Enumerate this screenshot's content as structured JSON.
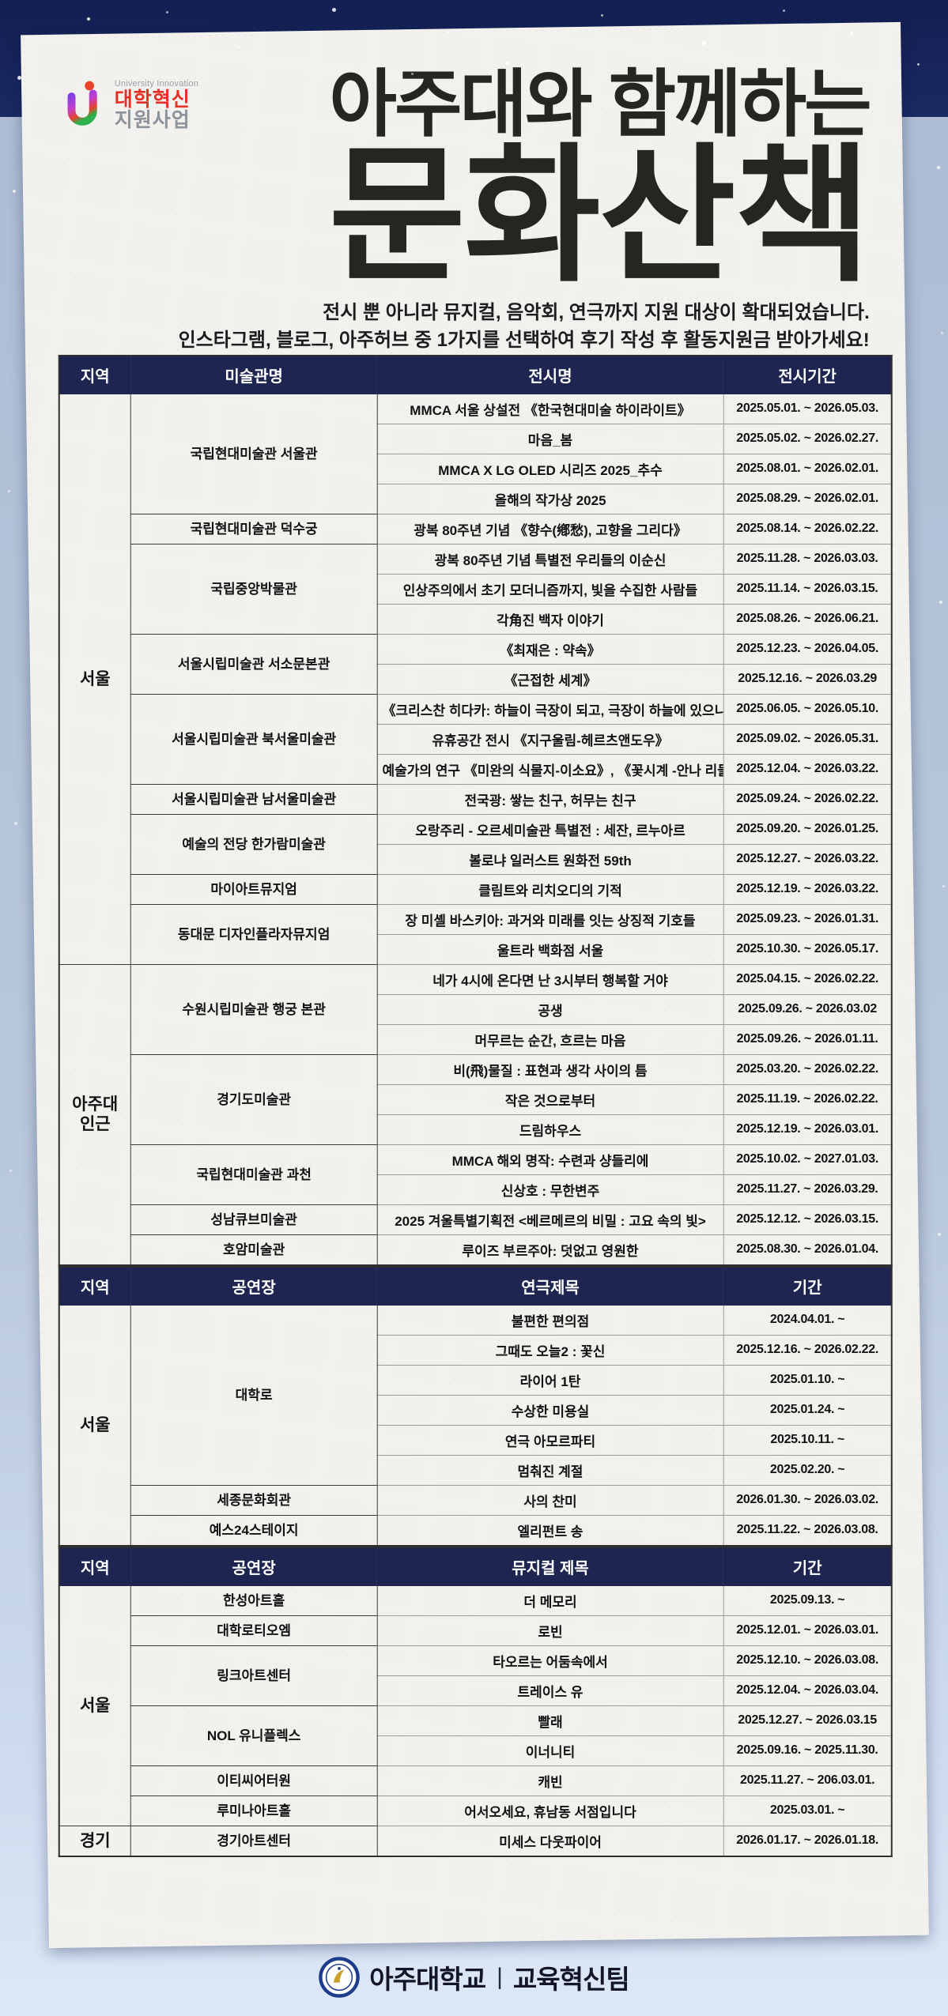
{
  "badge": {
    "small_label": "University Innovation",
    "line1": "대학혁신",
    "line2": "지원사업"
  },
  "title": {
    "line1": "아주대와 함께하는",
    "line2": "문화산책"
  },
  "subtitle": {
    "line1": "전시 뿐 아니라 뮤지컬, 음악회, 연극까지 지원 대상이 확대되었습니다.",
    "line2": "인스타그램, 블로그, 아주허브 중 1가지를 선택하여 후기 작성 후 활동지원금 받아가세요!"
  },
  "colors": {
    "header_navy": "#1d2550",
    "badge_red": "#e62e26",
    "paper": "#f2f1ee",
    "background_navy": "#1a2a63"
  },
  "tables": [
    {
      "headers": [
        "지역",
        "미술관명",
        "전시명",
        "전시기간"
      ],
      "regions": [
        {
          "name": "서울",
          "venues": [
            {
              "name": "국립현대미술관 서울관",
              "items": [
                {
                  "title": "MMCA 서울 상설전 《한국현대미술 하이라이트》",
                  "period": "2025.05.01. ~ 2026.05.03."
                },
                {
                  "title": "마음_봄",
                  "period": "2025.05.02. ~ 2026.02.27."
                },
                {
                  "title": "MMCA X LG OLED 시리즈 2025_추수",
                  "period": "2025.08.01. ~ 2026.02.01."
                },
                {
                  "title": "올해의 작가상 2025",
                  "period": "2025.08.29. ~ 2026.02.01."
                }
              ]
            },
            {
              "name": "국립현대미술관 덕수궁",
              "items": [
                {
                  "title": "광복 80주년 기념 《향수(鄕愁), 고향을 그리다》",
                  "period": "2025.08.14. ~ 2026.02.22."
                }
              ]
            },
            {
              "name": "국립중앙박물관",
              "items": [
                {
                  "title": "광복 80주년 기념 특별전 우리들의 이순신",
                  "period": "2025.11.28. ~ 2026.03.03."
                },
                {
                  "title": "인상주의에서 초기 모더니즘까지, 빛을 수집한 사람들",
                  "period": "2025.11.14. ~ 2026.03.15."
                },
                {
                  "title": "각角진 백자 이야기",
                  "period": "2025.08.26. ~ 2026.06.21."
                }
              ]
            },
            {
              "name": "서울시립미술관 서소문본관",
              "items": [
                {
                  "title": "《최재은 : 약속》",
                  "period": "2025.12.23. ~ 2026.04.05."
                },
                {
                  "title": "《근접한 세계》",
                  "period": "2025.12.16. ~ 2026.03.29"
                }
              ]
            },
            {
              "name": "서울시립미술관 북서울미술관",
              "items": [
                {
                  "title": "《크리스찬 히다카: 하늘이 극장이 되고, 극장이 하늘에 있으니》",
                  "period": "2025.06.05. ~ 2026.05.10."
                },
                {
                  "title": "유휴공간 전시 《지구울림-헤르츠앤도우》",
                  "period": "2025.09.02. ~ 2026.05.31."
                },
                {
                  "title": "예술가의 연구 《미완의 식물지-이소요》, 《꽃시계 -안나 리들러》",
                  "period": "2025.12.04. ~ 2026.03.22."
                }
              ]
            },
            {
              "name": "서울시립미술관 남서울미술관",
              "items": [
                {
                  "title": "전국광: 쌓는 친구, 허무는 친구",
                  "period": "2025.09.24. ~ 2026.02.22."
                }
              ]
            },
            {
              "name": "예술의 전당 한가람미술관",
              "items": [
                {
                  "title": "오랑주리 - 오르세미술관 특별전 : 세잔, 르누아르",
                  "period": "2025.09.20. ~ 2026.01.25."
                },
                {
                  "title": "볼로냐 일러스트 원화전 59th",
                  "period": "2025.12.27. ~ 2026.03.22."
                }
              ]
            },
            {
              "name": "마이아트뮤지엄",
              "items": [
                {
                  "title": "클림트와 리치오디의 기적",
                  "period": "2025.12.19. ~ 2026.03.22."
                }
              ]
            },
            {
              "name": "동대문 디자인플라자뮤지엄",
              "items": [
                {
                  "title": "장 미셸 바스키아: 과거와 미래를 잇는 상징적 기호들",
                  "period": "2025.09.23. ~ 2026.01.31."
                },
                {
                  "title": "울트라 백화점 서울",
                  "period": "2025.10.30. ~ 2026.05.17."
                }
              ]
            }
          ]
        },
        {
          "name": "아주대 인근",
          "venues": [
            {
              "name": "수원시립미술관 행궁 본관",
              "items": [
                {
                  "title": "네가 4시에 온다면 난 3시부터 행복할 거야",
                  "period": "2025.04.15. ~ 2026.02.22."
                },
                {
                  "title": "공생",
                  "period": "2025.09.26. ~ 2026.03.02"
                },
                {
                  "title": "머무르는 순간, 흐르는 마음",
                  "period": "2025.09.26. ~ 2026.01.11."
                }
              ]
            },
            {
              "name": "경기도미술관",
              "items": [
                {
                  "title": "비(飛)물질 : 표현과 생각 사이의 틈",
                  "period": "2025.03.20. ~ 2026.02.22."
                },
                {
                  "title": "작은 것으로부터",
                  "period": "2025.11.19. ~ 2026.02.22."
                },
                {
                  "title": "드림하우스",
                  "period": "2025.12.19. ~ 2026.03.01."
                }
              ]
            },
            {
              "name": "국립현대미술관 과천",
              "items": [
                {
                  "title": "MMCA 해외 명작: 수련과 샹들리에",
                  "period": "2025.10.02. ~ 2027.01.03."
                },
                {
                  "title": "신상호 : 무한변주",
                  "period": "2025.11.27. ~ 2026.03.29."
                }
              ]
            },
            {
              "name": "성남큐브미술관",
              "items": [
                {
                  "title": "2025 겨울특별기획전 <베르메르의 비밀 : 고요 속의 빛>",
                  "period": "2025.12.12. ~ 2026.03.15."
                }
              ]
            },
            {
              "name": "호암미술관",
              "items": [
                {
                  "title": "루이즈 부르주아: 덧없고 영원한",
                  "period": "2025.08.30. ~ 2026.01.04."
                }
              ]
            }
          ]
        }
      ]
    },
    {
      "headers": [
        "지역",
        "공연장",
        "연극제목",
        "기간"
      ],
      "regions": [
        {
          "name": "서울",
          "venues": [
            {
              "name": "대학로",
              "items": [
                {
                  "title": "불편한 편의점",
                  "period": "2024.04.01. ~"
                },
                {
                  "title": "그때도 오늘2 : 꽃신",
                  "period": "2025.12.16. ~ 2026.02.22."
                },
                {
                  "title": "라이어 1탄",
                  "period": "2025.01.10. ~"
                },
                {
                  "title": "수상한 미용실",
                  "period": "2025.01.24. ~"
                },
                {
                  "title": "연극 아모르파티",
                  "period": "2025.10.11. ~"
                },
                {
                  "title": "멈춰진 계절",
                  "period": "2025.02.20. ~"
                }
              ]
            },
            {
              "name": "세종문화회관",
              "items": [
                {
                  "title": "사의 찬미",
                  "period": "2026.01.30. ~ 2026.03.02."
                }
              ]
            },
            {
              "name": "예스24스테이지",
              "items": [
                {
                  "title": "엘리펀트 송",
                  "period": "2025.11.22. ~ 2026.03.08."
                }
              ]
            }
          ]
        }
      ]
    },
    {
      "headers": [
        "지역",
        "공연장",
        "뮤지컬 제목",
        "기간"
      ],
      "regions": [
        {
          "name": "서울",
          "venues": [
            {
              "name": "한성아트홀",
              "items": [
                {
                  "title": "더 메모리",
                  "period": "2025.09.13. ~"
                }
              ]
            },
            {
              "name": "대학로티오엠",
              "items": [
                {
                  "title": "로빈",
                  "period": "2025.12.01. ~ 2026.03.01."
                }
              ]
            },
            {
              "name": "링크아트센터",
              "items": [
                {
                  "title": "타오르는 어둠속에서",
                  "period": "2025.12.10. ~ 2026.03.08."
                },
                {
                  "title": "트레이스 유",
                  "period": "2025.12.04. ~ 2026.03.04."
                }
              ]
            },
            {
              "name": "NOL 유니플렉스",
              "items": [
                {
                  "title": "빨래",
                  "period": "2025.12.27. ~ 2026.03.15"
                },
                {
                  "title": "이너니티",
                  "period": "2025.09.16. ~ 2025.11.30."
                }
              ]
            },
            {
              "name": "이티씨어터원",
              "items": [
                {
                  "title": "캐빈",
                  "period": "2025.11.27. ~ 206.03.01."
                }
              ]
            },
            {
              "name": "루미나아트홀",
              "items": [
                {
                  "title": "어서오세요, 휴남동 서점입니다",
                  "period": "2025.03.01. ~"
                }
              ]
            }
          ]
        },
        {
          "name": "경기",
          "venues": [
            {
              "name": "경기아트센터",
              "items": [
                {
                  "title": "미세스 다웃파이어",
                  "period": "2026.01.17. ~ 2026.01.18."
                }
              ]
            }
          ]
        }
      ]
    }
  ],
  "footer": {
    "university": "아주대학교",
    "separator": "|",
    "team": "교육혁신팀"
  }
}
